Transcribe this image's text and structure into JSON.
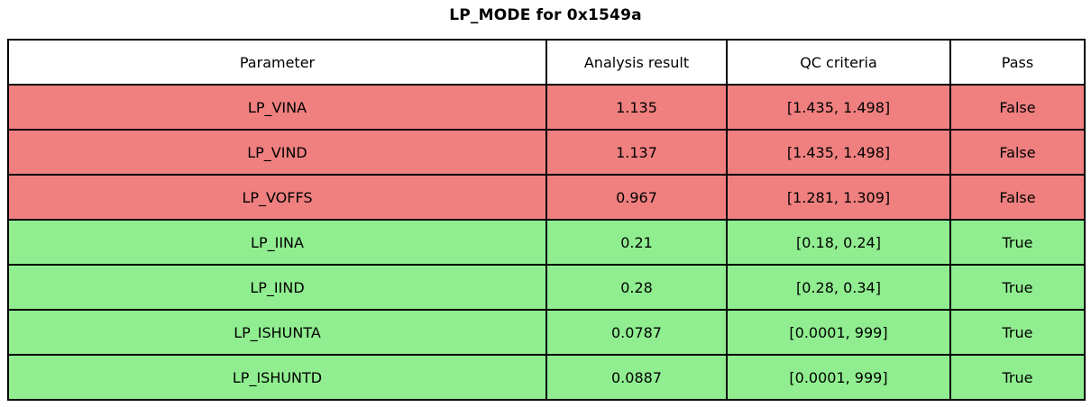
{
  "chart_data": {
    "type": "table",
    "title": "LP_MODE for 0x1549a",
    "columns": [
      "Parameter",
      "Analysis result",
      "QC criteria",
      "Pass"
    ],
    "rows": [
      [
        "LP_VINA",
        "1.135",
        "[1.435, 1.498]",
        "False"
      ],
      [
        "LP_VIND",
        "1.137",
        "[1.435, 1.498]",
        "False"
      ],
      [
        "LP_VOFFS",
        "0.967",
        "[1.281, 1.309]",
        "False"
      ],
      [
        "LP_IINA",
        "0.21",
        "[0.18, 0.24]",
        "True"
      ],
      [
        "LP_IIND",
        "0.28",
        "[0.28, 0.34]",
        "True"
      ],
      [
        "LP_ISHUNTA",
        "0.0787",
        "[0.0001, 999]",
        "True"
      ],
      [
        "LP_ISHUNTD",
        "0.0887",
        "[0.0001, 999]",
        "True"
      ]
    ],
    "row_status": [
      "fail",
      "fail",
      "fail",
      "pass",
      "pass",
      "pass",
      "pass"
    ],
    "legend_position": "none",
    "grid": "cell-borders"
  },
  "colors": {
    "fail_row": "#F08080",
    "pass_row": "#90EE90",
    "header_bg": "#FFFFFF",
    "border": "#000000",
    "text": "#000000"
  }
}
